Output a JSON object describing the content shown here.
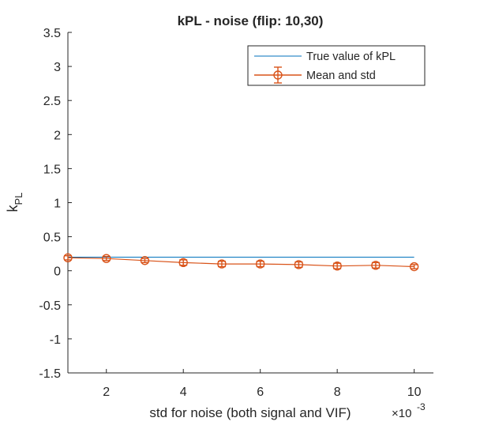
{
  "chart_data": {
    "type": "line",
    "title": "kPL - noise (flip: 10,30)",
    "xlabel": "std for noise (both signal and VIF)",
    "ylabel": {
      "main": "k",
      "subscript": "PL"
    },
    "x_exponent": {
      "base": "×10",
      "power": "-3"
    },
    "xlim": [
      1,
      10.5
    ],
    "ylim": [
      -1.5,
      3.5
    ],
    "x_ticks": [
      2,
      4,
      6,
      8,
      10
    ],
    "x_tick_labels": [
      "2",
      "4",
      "6",
      "8",
      "10"
    ],
    "y_ticks": [
      -1.5,
      -1,
      -0.5,
      0,
      0.5,
      1,
      1.5,
      2,
      2.5,
      3,
      3.5
    ],
    "y_tick_labels": [
      "-1.5",
      "-1",
      "-0.5",
      "0",
      "0.5",
      "1",
      "1.5",
      "2",
      "2.5",
      "3",
      "3.5"
    ],
    "grid": false,
    "legend_position": "top-right",
    "series": [
      {
        "name": "True value of kPL",
        "kind": "line",
        "color": "#0072bd",
        "x": [
          1,
          10
        ],
        "y": [
          0.2,
          0.2
        ]
      },
      {
        "name": "Mean and std",
        "kind": "errorbar",
        "color": "#d95319",
        "marker": "circle",
        "x": [
          1,
          2,
          3,
          4,
          5,
          6,
          7,
          8,
          9,
          10
        ],
        "y": [
          0.19,
          0.18,
          0.15,
          0.12,
          0.1,
          0.1,
          0.09,
          0.07,
          0.08,
          0.06
        ],
        "err": [
          0.03,
          0.03,
          0.03,
          0.04,
          0.04,
          0.04,
          0.04,
          0.04,
          0.04,
          0.03
        ]
      }
    ]
  }
}
